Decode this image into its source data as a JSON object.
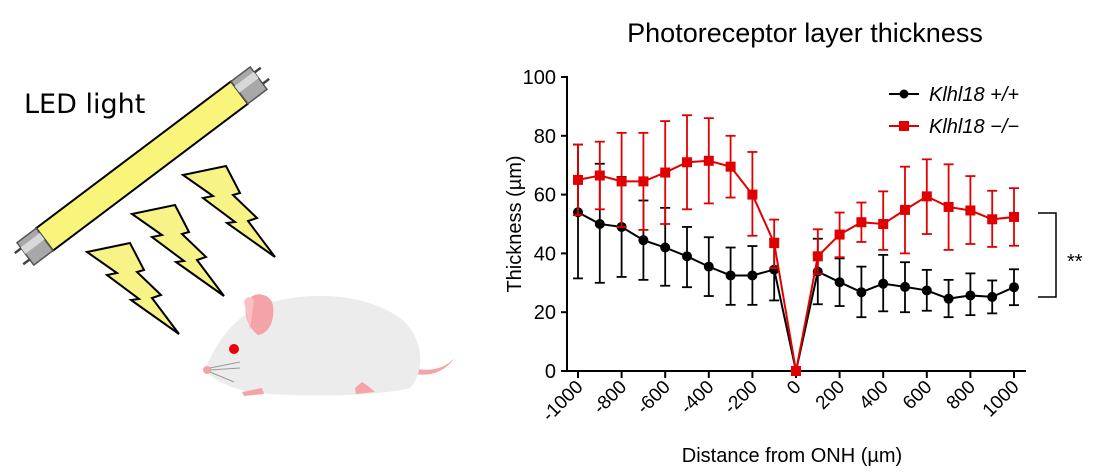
{
  "illustration": {
    "label": "LED light",
    "tube_color": "#f9f57a",
    "bolt_color": "#f7f386",
    "mouse_body_color": "#ececec",
    "mouse_pink": "#f4a3a8",
    "mouse_eye_color": "#e8000b"
  },
  "chart_data": {
    "type": "line",
    "title": "Photoreceptor layer thickness",
    "xlabel": "Distance from ONH (µm)",
    "ylabel": "Thickness (µm)",
    "xlim": [
      -1000,
      1000
    ],
    "ylim": [
      0,
      100
    ],
    "xticks": [
      "-1000",
      "-800",
      "-600",
      "-400",
      "-200",
      "0",
      "200",
      "400",
      "600",
      "800",
      "1000"
    ],
    "yticks": [
      "0",
      "20",
      "40",
      "60",
      "80",
      "100"
    ],
    "grid": false,
    "legend_position": "top-right",
    "x": [
      -1000,
      -900,
      -800,
      -700,
      -600,
      -500,
      -400,
      -300,
      -200,
      -100,
      0,
      100,
      200,
      300,
      400,
      500,
      600,
      700,
      800,
      900,
      1000
    ],
    "series": [
      {
        "name": "Klhl18 +/+",
        "color": "#000000",
        "marker": "circle",
        "values": [
          54,
          50,
          49,
          44.5,
          42,
          39,
          35.5,
          32.5,
          32.5,
          34.5,
          0,
          33.8,
          30.2,
          26.8,
          29.7,
          28.6,
          27.4,
          24.6,
          25.7,
          25.2,
          28.5
        ],
        "err_upper": [
          77,
          70.5,
          66,
          58,
          55.5,
          49,
          45.5,
          42,
          42.5,
          45,
          0,
          45,
          38.3,
          35.5,
          39.5,
          37,
          34.4,
          31,
          33.2,
          30.8,
          34.6
        ],
        "err_lower": [
          31.5,
          30,
          32,
          31,
          29,
          28.5,
          25.5,
          22.5,
          22.5,
          24,
          0,
          22.7,
          22.1,
          18.3,
          20.3,
          20,
          20.5,
          18.3,
          19,
          19.6,
          22.4
        ]
      },
      {
        "name": "Klhl18 −/−",
        "color": "#e00000",
        "marker": "square",
        "values": [
          65,
          66.5,
          64.5,
          64.5,
          67.5,
          71,
          71.5,
          69.5,
          60,
          43.5,
          0,
          39,
          46.4,
          50.6,
          50,
          54.8,
          59.4,
          55.8,
          54.6,
          51.6,
          52.4
        ],
        "err_upper": [
          77,
          78,
          81,
          81,
          85,
          87,
          86,
          80,
          74.5,
          51.5,
          0,
          48.2,
          53.9,
          57.3,
          61.1,
          69.5,
          72,
          70.3,
          66.3,
          61.3,
          62.2
        ],
        "err_lower": [
          53,
          55,
          49,
          48,
          50,
          55,
          57,
          59,
          46,
          35,
          0,
          33,
          38.7,
          43.9,
          41.2,
          40,
          46.6,
          41.2,
          43.2,
          42.2,
          42.6
        ]
      }
    ],
    "annotation": "**"
  }
}
